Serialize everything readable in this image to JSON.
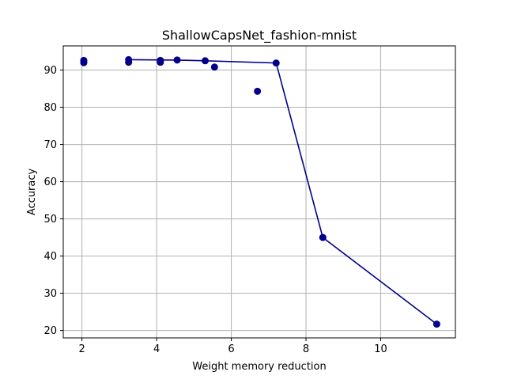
{
  "chart_data": {
    "type": "scatter",
    "title": "ShallowCapsNet_fashion-mnist",
    "xlabel": "Weight memory reduction",
    "ylabel": "Accuracy",
    "xlim": [
      1.5,
      12.0
    ],
    "ylim": [
      18.0,
      96.5
    ],
    "xticks": [
      2,
      4,
      6,
      8,
      10
    ],
    "yticks": [
      20,
      30,
      40,
      50,
      60,
      70,
      80,
      90
    ],
    "grid": true,
    "legend": "none",
    "color": "#00008b",
    "points": [
      {
        "x": 2.05,
        "y": 92.6
      },
      {
        "x": 2.05,
        "y": 92.0
      },
      {
        "x": 3.25,
        "y": 92.8
      },
      {
        "x": 3.25,
        "y": 92.1
      },
      {
        "x": 4.1,
        "y": 92.6
      },
      {
        "x": 4.1,
        "y": 92.1
      },
      {
        "x": 4.55,
        "y": 92.7
      },
      {
        "x": 5.3,
        "y": 92.5
      },
      {
        "x": 5.55,
        "y": 90.8
      },
      {
        "x": 6.7,
        "y": 84.3
      },
      {
        "x": 7.2,
        "y": 91.9
      },
      {
        "x": 8.45,
        "y": 45.0
      },
      {
        "x": 11.5,
        "y": 21.7
      }
    ],
    "pareto_line": [
      {
        "x": 3.25,
        "y": 92.8
      },
      {
        "x": 4.55,
        "y": 92.7
      },
      {
        "x": 5.3,
        "y": 92.5
      },
      {
        "x": 7.2,
        "y": 91.9
      },
      {
        "x": 8.45,
        "y": 45.0
      },
      {
        "x": 11.5,
        "y": 21.7
      }
    ]
  }
}
